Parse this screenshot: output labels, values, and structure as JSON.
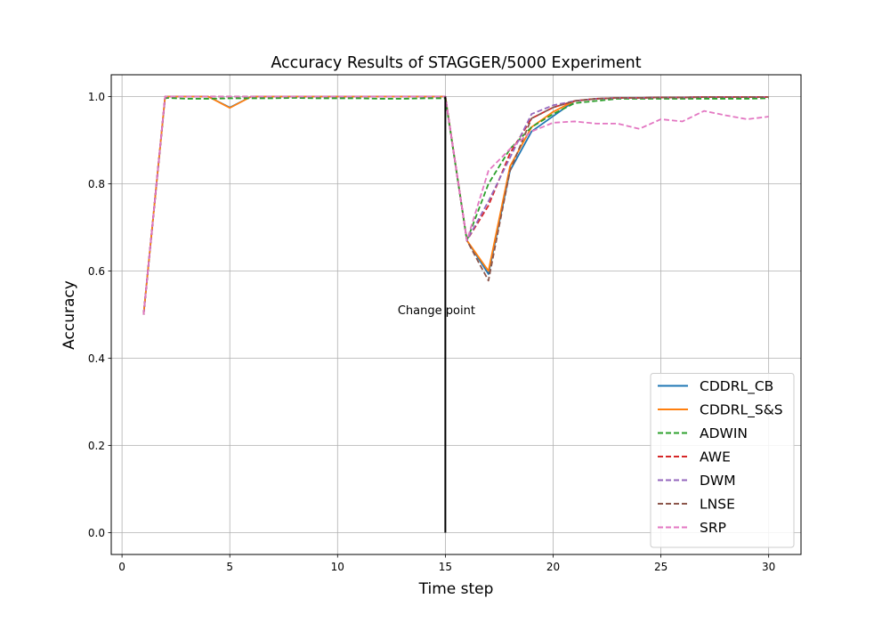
{
  "chart_data": {
    "type": "line",
    "title": "Accuracy Results of STAGGER/5000 Experiment",
    "xlabel": "Time step",
    "ylabel": "Accuracy",
    "xlim": [
      -0.5,
      31.5
    ],
    "ylim": [
      -0.05,
      1.05
    ],
    "xticks": [
      0,
      5,
      10,
      15,
      20,
      25,
      30
    ],
    "yticks": [
      0.0,
      0.2,
      0.4,
      0.6,
      0.8,
      1.0
    ],
    "xtick_labels": [
      "0",
      "5",
      "10",
      "15",
      "20",
      "25",
      "30"
    ],
    "ytick_labels": [
      "0.0",
      "0.2",
      "0.4",
      "0.6",
      "0.8",
      "1.0"
    ],
    "grid": true,
    "legend_position": "lower-right",
    "x": [
      1,
      2,
      3,
      4,
      5,
      6,
      7,
      8,
      9,
      10,
      11,
      12,
      13,
      14,
      15,
      16,
      17,
      18,
      19,
      20,
      21,
      22,
      23,
      24,
      25,
      26,
      27,
      28,
      29,
      30
    ],
    "series": [
      {
        "name": "CDDRL_CB",
        "color": "#1f77b4",
        "dash": "solid",
        "values": [
          0.5,
          1.0,
          1.0,
          1.0,
          0.975,
          1.0,
          1.0,
          1.0,
          1.0,
          1.0,
          1.0,
          1.0,
          1.0,
          1.0,
          1.0,
          0.67,
          0.593,
          0.83,
          0.92,
          0.955,
          0.99,
          0.995,
          0.997,
          0.997,
          0.998,
          0.998,
          0.999,
          0.999,
          0.999,
          0.999
        ]
      },
      {
        "name": "CDDRL_S&S",
        "color": "#ff7f0e",
        "dash": "solid",
        "values": [
          0.5,
          1.0,
          1.0,
          1.0,
          0.974,
          1.0,
          1.0,
          1.0,
          1.0,
          1.0,
          1.0,
          1.0,
          1.0,
          1.0,
          1.0,
          0.67,
          0.6,
          0.84,
          0.93,
          0.965,
          0.99,
          0.995,
          0.997,
          0.997,
          0.998,
          0.998,
          0.999,
          0.999,
          0.999,
          0.999
        ]
      },
      {
        "name": "ADWIN",
        "color": "#2ca02c",
        "dash": "dashed",
        "values": [
          0.5,
          0.997,
          0.995,
          0.995,
          0.996,
          0.996,
          0.996,
          0.997,
          0.996,
          0.996,
          0.996,
          0.995,
          0.995,
          0.996,
          0.996,
          0.67,
          0.8,
          0.88,
          0.93,
          0.96,
          0.985,
          0.99,
          0.995,
          0.995,
          0.995,
          0.995,
          0.995,
          0.995,
          0.995,
          0.996
        ]
      },
      {
        "name": "AWE",
        "color": "#d62728",
        "dash": "dashed",
        "values": [
          0.5,
          1.0,
          1.0,
          1.0,
          1.0,
          1.0,
          1.0,
          1.0,
          1.0,
          1.0,
          1.0,
          1.0,
          1.0,
          1.0,
          1.0,
          0.67,
          0.75,
          0.87,
          0.95,
          0.975,
          0.99,
          0.995,
          0.997,
          0.997,
          0.998,
          0.998,
          0.999,
          0.999,
          0.999,
          0.999
        ]
      },
      {
        "name": "DWM",
        "color": "#9467bd",
        "dash": "dashed",
        "values": [
          0.5,
          1.0,
          1.0,
          1.0,
          1.0,
          1.0,
          1.0,
          1.0,
          1.0,
          1.0,
          1.0,
          1.0,
          1.0,
          1.0,
          1.0,
          0.67,
          0.76,
          0.86,
          0.96,
          0.98,
          0.99,
          0.995,
          0.997,
          0.997,
          0.998,
          0.998,
          0.999,
          0.999,
          0.999,
          0.999
        ]
      },
      {
        "name": "LNSE",
        "color": "#8c564b",
        "dash": "dashed",
        "values": [
          0.5,
          1.0,
          1.0,
          1.0,
          1.0,
          1.0,
          1.0,
          1.0,
          1.0,
          1.0,
          1.0,
          1.0,
          1.0,
          1.0,
          1.0,
          0.67,
          0.578,
          0.83,
          0.95,
          0.975,
          0.99,
          0.995,
          0.997,
          0.997,
          0.998,
          0.998,
          0.999,
          0.999,
          0.999,
          0.999
        ]
      },
      {
        "name": "SRP",
        "color": "#e377c2",
        "dash": "dashed",
        "values": [
          0.5,
          1.0,
          1.0,
          1.0,
          1.0,
          1.0,
          1.0,
          1.0,
          1.0,
          1.0,
          1.0,
          1.0,
          1.0,
          1.0,
          1.0,
          0.67,
          0.83,
          0.88,
          0.92,
          0.94,
          0.943,
          0.938,
          0.938,
          0.926,
          0.948,
          0.943,
          0.967,
          0.957,
          0.948,
          0.954
        ]
      }
    ],
    "annotation": {
      "text": "Change point",
      "x": 15,
      "y": 0.45,
      "vline": {
        "x": 15,
        "y_from": 0.0,
        "y_to": 1.0,
        "color": "#000000"
      }
    }
  }
}
